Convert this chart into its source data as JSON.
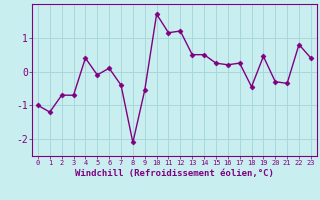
{
  "x": [
    0,
    1,
    2,
    3,
    4,
    5,
    6,
    7,
    8,
    9,
    10,
    11,
    12,
    13,
    14,
    15,
    16,
    17,
    18,
    19,
    20,
    21,
    22,
    23
  ],
  "y": [
    -1.0,
    -1.2,
    -0.7,
    -0.7,
    0.4,
    -0.1,
    0.1,
    -0.4,
    -2.1,
    -0.55,
    1.7,
    1.15,
    1.2,
    0.5,
    0.5,
    0.25,
    0.2,
    0.25,
    -0.45,
    0.45,
    -0.3,
    -0.35,
    0.8,
    0.4
  ],
  "line_color": "#800080",
  "marker": "D",
  "marker_size": 2.5,
  "line_width": 1.0,
  "bg_color": "#c8eef0",
  "grid_color": "#a8d8dc",
  "xlabel": "Windchill (Refroidissement éolien,°C)",
  "xlabel_color": "#800080",
  "tick_color": "#800080",
  "spine_color": "#800080",
  "ylim": [
    -2.5,
    2.0
  ],
  "yticks": [
    -2,
    -1,
    0,
    1
  ],
  "xlim": [
    -0.5,
    23.5
  ],
  "xlabel_fontsize": 6.5,
  "ytick_fontsize": 7,
  "xtick_fontsize": 5.0
}
